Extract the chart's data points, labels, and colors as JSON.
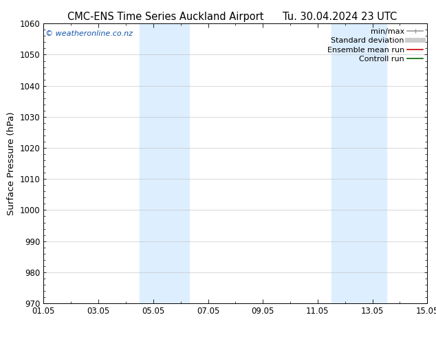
{
  "title_left": "CMC-ENS Time Series Auckland Airport",
  "title_right": "Tu. 30.04.2024 23 UTC",
  "ylabel": "Surface Pressure (hPa)",
  "ylim": [
    970,
    1060
  ],
  "yticks": [
    970,
    980,
    990,
    1000,
    1010,
    1020,
    1030,
    1040,
    1050,
    1060
  ],
  "xtick_labels": [
    "01.05",
    "03.05",
    "05.05",
    "07.05",
    "09.05",
    "11.05",
    "13.05",
    "15.05"
  ],
  "xtick_positions": [
    0,
    2,
    4,
    6,
    8,
    10,
    12,
    14
  ],
  "xlim": [
    0,
    14
  ],
  "shaded_regions": [
    {
      "x_start": 3.5,
      "x_end": 5.3,
      "color": "#ddeeff"
    },
    {
      "x_start": 10.5,
      "x_end": 12.5,
      "color": "#ddeeff"
    }
  ],
  "watermark": "© weatheronline.co.nz",
  "watermark_color": "#1155aa",
  "legend_labels": [
    "min/max",
    "Standard deviation",
    "Ensemble mean run",
    "Controll run"
  ],
  "legend_colors": [
    "#999999",
    "#cccccc",
    "#cc0000",
    "#006600"
  ],
  "legend_linewidths": [
    1.2,
    5,
    1.2,
    1.2
  ],
  "bg_color": "#ffffff",
  "axes_bg_color": "#ffffff",
  "grid_color": "#bbbbbb",
  "title_fontsize": 10.5,
  "tick_fontsize": 8.5,
  "ylabel_fontsize": 9.5,
  "watermark_fontsize": 8,
  "legend_fontsize": 8
}
